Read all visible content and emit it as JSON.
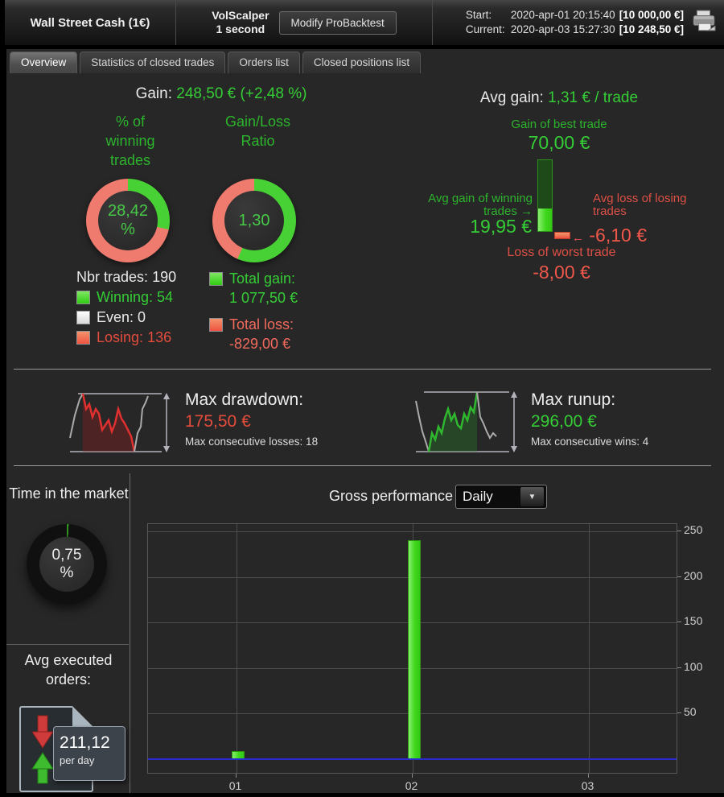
{
  "header": {
    "title": "Wall Street Cash (1€)",
    "system": {
      "name": "VolScalper",
      "timeframe": "1 second"
    },
    "modify_button_label": "Modify ProBacktest",
    "start": {
      "label": "Start:",
      "datetime": "2020-apr-01 20:15:40",
      "equity": "[10 000,00 €]"
    },
    "current": {
      "label": "Current:",
      "datetime": "2020-apr-03 15:27:30",
      "equity": "[10 248,50 €]"
    }
  },
  "tabs": [
    {
      "label": "Overview",
      "active": true
    },
    {
      "label": "Statistics of closed trades",
      "active": false
    },
    {
      "label": "Orders list",
      "active": false
    },
    {
      "label": "Closed positions list",
      "active": false
    }
  ],
  "overview": {
    "gain_label": "Gain:",
    "gain_value": "248,50 € (+2,48 %)",
    "winning": {
      "title": "% of winning trades",
      "center_line1": "28,42",
      "center_line2": "%",
      "pct_green": 28.42,
      "nbr_trades_label": "Nbr trades:",
      "nbr_trades_value": "190",
      "legend": [
        {
          "label": "Winning:",
          "value": "54"
        },
        {
          "label": "Even:",
          "value": "0"
        },
        {
          "label": "Losing:",
          "value": "136"
        }
      ]
    },
    "ratio": {
      "title": "Gain/Loss Ratio",
      "center_value": "1,30",
      "pct_green": 56.52,
      "total_gain_label": "Total gain:",
      "total_gain_value": "1 077,50 €",
      "total_loss_label": "Total loss:",
      "total_loss_value": "-829,00 €"
    },
    "avg": {
      "label": "Avg gain:",
      "value": "1,31 € / trade",
      "best_label": "Gain of best trade",
      "best_value": "70,00 €",
      "avg_win_label": "Avg gain of winning trades",
      "avg_win_value": "19,95 €",
      "avg_loss_label": "Avg loss of losing trades",
      "avg_loss_value": "-6,10 €",
      "worst_label": "Loss of worst trade",
      "worst_value": "-8,00 €"
    }
  },
  "drawdown": {
    "label": "Max drawdown:",
    "value": "175,50 €",
    "consecutive": "Max consecutive losses: 18"
  },
  "runup": {
    "label": "Max runup:",
    "value": "296,00 €",
    "consecutive": "Max consecutive wins: 4"
  },
  "bottom": {
    "time_in_market": {
      "title": "Time in the market",
      "center_line1": "0,75",
      "center_line2": "%",
      "pct_green": 0.75
    },
    "avg_orders": {
      "title": "Avg executed orders:",
      "value": "211,12",
      "unit": "per day"
    },
    "performance_title": "Gross performance",
    "period_dropdown": {
      "selected": "Daily"
    }
  },
  "icons": {
    "arrow_right": "→",
    "arrow_left": "←",
    "dropdown_caret": "▼"
  },
  "chart_data": {
    "type": "bar",
    "title": "Gross performance (Daily)",
    "categories": [
      "01",
      "02",
      "03"
    ],
    "values": [
      8.5,
      240.0,
      0
    ],
    "xlabel": "",
    "ylabel": "",
    "y_ticks": [
      50,
      100,
      150,
      200,
      250
    ],
    "ylim": [
      -15,
      258
    ],
    "grid": true,
    "bar_color": "#3fd81c",
    "zero_line_color": "#2a2ad0"
  },
  "colors": {
    "green_text": "#35cd35",
    "red_text": "#e44c3c",
    "salmon_text": "#f26a5c",
    "donut_green": "#48d134",
    "donut_red": "#ef7b6e",
    "time_donut_green": "#2f8f1f",
    "time_donut_rest": "#101010"
  }
}
